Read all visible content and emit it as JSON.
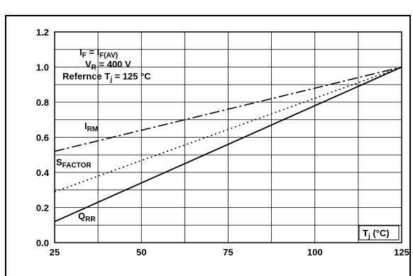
{
  "chart_data": {
    "type": "line",
    "title": "",
    "xlabel": {
      "main": "T",
      "sub": "j",
      "rest": " (°C)"
    },
    "ylabel": "",
    "xlim": [
      25,
      125
    ],
    "ylim": [
      0.0,
      1.2
    ],
    "x_ticks": [
      "25",
      "50",
      "75",
      "100",
      "125"
    ],
    "y_ticks": [
      "0.0",
      "0.2",
      "0.4",
      "0.6",
      "0.8",
      "1.0",
      "1.2"
    ],
    "grid": true,
    "legend": "none",
    "annotation": {
      "line1": {
        "a": "I",
        "a_sub": "F",
        "b": " = I",
        "b_sub": "F(AV)"
      },
      "line2": {
        "a": "V",
        "a_sub": "R",
        "b": " = 400 V"
      },
      "line3": {
        "a": "Refernce T",
        "a_sub": "j",
        "b": " = 125 °C"
      }
    },
    "series": [
      {
        "name": "I",
        "name_sub": "RM",
        "style": "dash-dot",
        "color": "#000000",
        "x": [
          25,
          125
        ],
        "y": [
          0.52,
          1.0
        ]
      },
      {
        "name": "S",
        "name_sub": "FACTOR",
        "style": "dotted",
        "color": "#000000",
        "x": [
          25,
          125
        ],
        "y": [
          0.29,
          1.0
        ]
      },
      {
        "name": "Q",
        "name_sub": "RR",
        "style": "solid",
        "color": "#000000",
        "x": [
          25,
          125
        ],
        "y": [
          0.12,
          1.0
        ]
      }
    ]
  }
}
